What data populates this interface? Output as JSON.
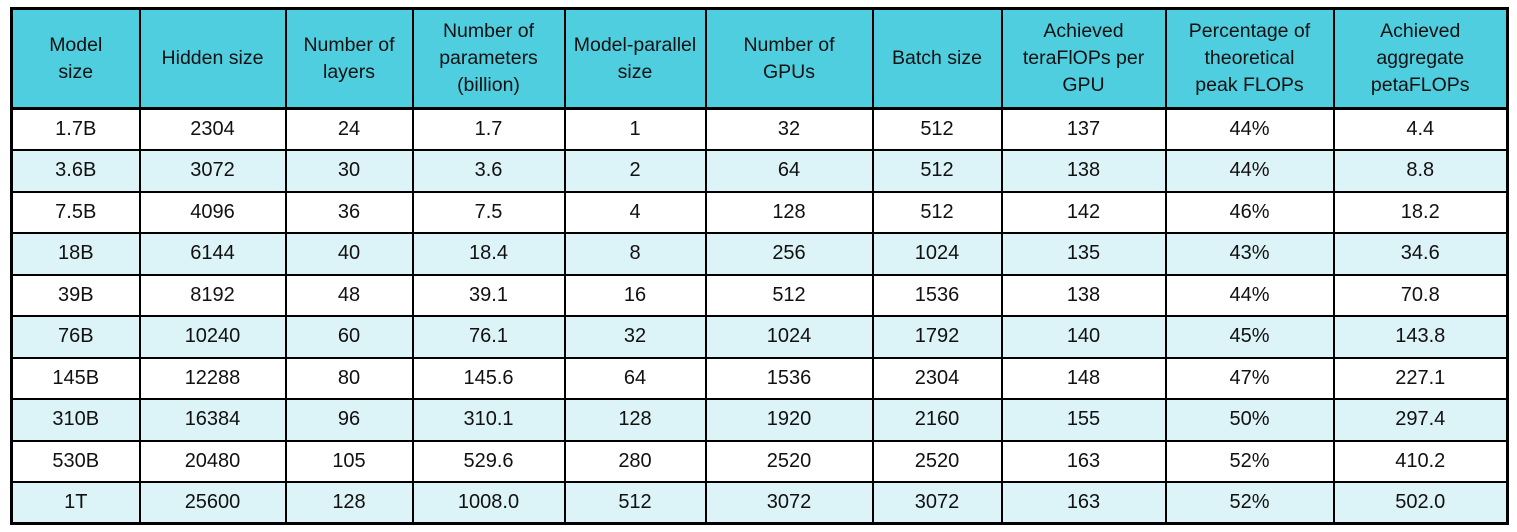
{
  "colors": {
    "header_bg": "#4FCEDF",
    "row_bg": "#FFFFFF",
    "row_alt_bg": "#DCF3F7",
    "border": "#000000"
  },
  "chart_data": {
    "type": "table",
    "legend_position": "none",
    "grid": "full-borders",
    "columns": [
      "Model\nsize",
      "Hidden size",
      "Number of\nlayers",
      "Number of\nparameters\n(billion)",
      "Model-parallel\nsize",
      "Number of\nGPUs",
      "Batch size",
      "Achieved\nteraFlOPs per\nGPU",
      "Percentage of\ntheoretical\npeak FLOPs",
      "Achieved\naggregate\npetaFLOPs"
    ],
    "rows": [
      [
        "1.7B",
        "2304",
        "24",
        "1.7",
        "1",
        "32",
        "512",
        "137",
        "44%",
        "4.4"
      ],
      [
        "3.6B",
        "3072",
        "30",
        "3.6",
        "2",
        "64",
        "512",
        "138",
        "44%",
        "8.8"
      ],
      [
        "7.5B",
        "4096",
        "36",
        "7.5",
        "4",
        "128",
        "512",
        "142",
        "46%",
        "18.2"
      ],
      [
        "18B",
        "6144",
        "40",
        "18.4",
        "8",
        "256",
        "1024",
        "135",
        "43%",
        "34.6"
      ],
      [
        "39B",
        "8192",
        "48",
        "39.1",
        "16",
        "512",
        "1536",
        "138",
        "44%",
        "70.8"
      ],
      [
        "76B",
        "10240",
        "60",
        "76.1",
        "32",
        "1024",
        "1792",
        "140",
        "45%",
        "143.8"
      ],
      [
        "145B",
        "12288",
        "80",
        "145.6",
        "64",
        "1536",
        "2304",
        "148",
        "47%",
        "227.1"
      ],
      [
        "310B",
        "16384",
        "96",
        "310.1",
        "128",
        "1920",
        "2160",
        "155",
        "50%",
        "297.4"
      ],
      [
        "530B",
        "20480",
        "105",
        "529.6",
        "280",
        "2520",
        "2520",
        "163",
        "52%",
        "410.2"
      ],
      [
        "1T",
        "25600",
        "128",
        "1008.0",
        "512",
        "3072",
        "3072",
        "163",
        "52%",
        "502.0"
      ]
    ]
  }
}
